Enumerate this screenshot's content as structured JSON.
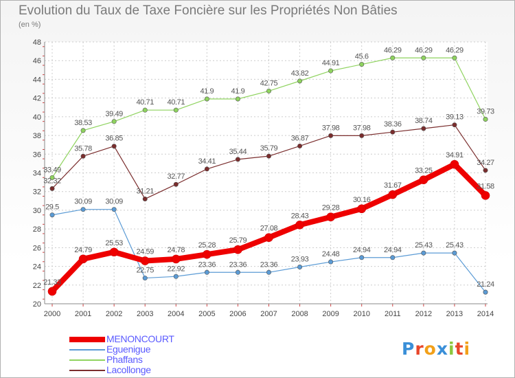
{
  "title": "Evolution du Taux de Taxe Foncière sur les Propriétés Non Bâties",
  "unit_label": "(en %)",
  "logo": {
    "text": "Proxiti",
    "letters": [
      "P",
      "r",
      "o",
      "x",
      "i",
      "t",
      "i"
    ],
    "colors": [
      "#3a8fd8",
      "#e8462a",
      "#f2a019",
      "#3a8fd8",
      "#8cc63e",
      "#e8462a",
      "#f2a019"
    ]
  },
  "chart_data": {
    "type": "line",
    "title": "Evolution du Taux de Taxe Foncière sur les Propriétés Non Bâties",
    "ylabel": "(en %)",
    "xlabel": "",
    "x": [
      "2000",
      "2001",
      "2002",
      "2003",
      "2004",
      "2005",
      "2006",
      "2007",
      "2008",
      "2009",
      "2010",
      "2011",
      "2012",
      "2013",
      "2014"
    ],
    "ylim": [
      20,
      48
    ],
    "yticks": [
      "20",
      "22",
      "24",
      "26",
      "28",
      "30",
      "32",
      "34",
      "36",
      "38",
      "40",
      "42",
      "44",
      "46",
      "48"
    ],
    "grid": true,
    "legend_position": "bottom-left",
    "series": [
      {
        "name": "Phaffans",
        "color": "#8fd35f",
        "values": [
          33.49,
          38.53,
          39.49,
          40.71,
          40.71,
          41.9,
          41.9,
          42.75,
          43.82,
          44.91,
          45.6,
          46.29,
          46.29,
          46.29,
          39.73
        ],
        "labels": [
          "33.49",
          "38.53",
          "39.49",
          "40.71",
          "40.71",
          "41.9",
          "41.9",
          "42.75",
          "43.82",
          "44.91",
          "45.6",
          "46.29",
          "46.29",
          "46.29",
          "39.73"
        ]
      },
      {
        "name": "Lacollonge",
        "color": "#7a2d2d",
        "values": [
          32.32,
          35.78,
          36.85,
          31.21,
          32.77,
          34.41,
          35.44,
          35.79,
          36.87,
          37.98,
          37.98,
          38.36,
          38.74,
          39.13,
          34.27
        ],
        "labels": [
          "32.32",
          "35.78",
          "36.85",
          "31.21",
          "32.77",
          "34.41",
          "35.44",
          "35.79",
          "36.87",
          "37.98",
          "37.98",
          "38.36",
          "38.74",
          "39.13",
          "34.27"
        ]
      },
      {
        "name": "Eguenigue",
        "color": "#5b9bd5",
        "values": [
          29.5,
          30.09,
          30.09,
          22.75,
          22.92,
          23.36,
          23.36,
          23.36,
          23.93,
          24.48,
          24.94,
          24.94,
          25.43,
          25.43,
          21.24
        ],
        "labels": [
          "29.5",
          "30.09",
          "30.09",
          "22.75",
          "22.92",
          "23.36",
          "23.36",
          "23.36",
          "23.93",
          "24.48",
          "24.94",
          "24.94",
          "25.43",
          "25.43",
          "21.24"
        ]
      },
      {
        "name": "MENONCOURT",
        "color": "#ee0000",
        "values": [
          21.33,
          24.79,
          25.53,
          24.59,
          24.78,
          25.28,
          25.79,
          27.08,
          28.43,
          29.28,
          30.16,
          31.67,
          33.25,
          34.91,
          31.58
        ],
        "labels": [
          "21.33",
          "24.79",
          "25.53",
          "24.59",
          "24.78",
          "25.28",
          "25.79",
          "27.08",
          "28.43",
          "29.28",
          "30.16",
          "31.67",
          "33.25",
          "34.91",
          "31.58"
        ]
      }
    ],
    "legend": [
      {
        "name": "MENONCOURT",
        "color": "#ee0000"
      },
      {
        "name": "Eguenigue",
        "color": "#5b9bd5"
      },
      {
        "name": "Phaffans",
        "color": "#8fd35f"
      },
      {
        "name": "Lacollonge",
        "color": "#7a2d2d"
      }
    ]
  }
}
